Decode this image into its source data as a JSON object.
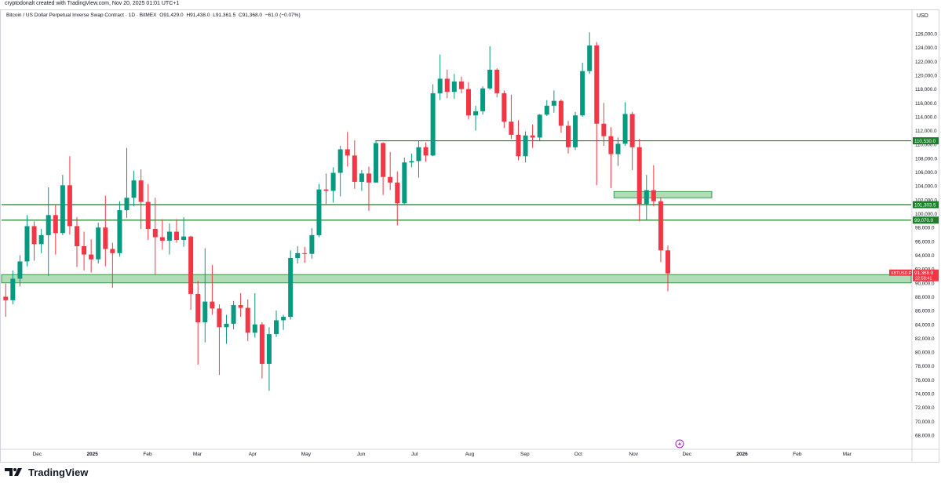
{
  "header": {
    "caption": "cryptodonalt created with TradingView.com, Nov 20, 2025 01:01 UTC+1",
    "symbol_title": "Bitcoin / US Dollar Perpetual Inverse Swap Contract · 1D · BitMEX",
    "open": "O91,429.0",
    "high": "H91,438.0",
    "low": "L91,361.5",
    "close": "C91,368.0",
    "change": "−61.0 (−0.07%)"
  },
  "footer": {
    "brand": "TradingView"
  },
  "chart_data": {
    "type": "candlestick",
    "currency_label": "USD",
    "ylim": [
      67000,
      128000
    ],
    "y_ticks": [
      "68,000.0",
      "70,000.0",
      "72,000.0",
      "74,000.0",
      "76,000.0",
      "78,000.0",
      "80,000.0",
      "82,000.0",
      "84,000.0",
      "86,000.0",
      "88,000.0",
      "90,000.0",
      "92,000.0",
      "94,000.0",
      "96,000.0",
      "98,000.0",
      "100,000.0",
      "102,000.0",
      "104,000.0",
      "106,000.0",
      "108,000.0",
      "110,000.0",
      "112,000.0",
      "114,000.0",
      "116,000.0",
      "118,000.0",
      "120,000.0",
      "122,000.0",
      "124,000.0",
      "126,000.0"
    ],
    "x_ticks": [
      "Dec",
      "2025",
      "Feb",
      "Mar",
      "Apr",
      "May",
      "Jun",
      "Jul",
      "Aug",
      "Sep",
      "Oct",
      "Nov",
      "Dec",
      "2026",
      "Feb",
      "Mar"
    ],
    "x_tick_dates": [
      "2024-12-01",
      "2025-01-01",
      "2025-02-01",
      "2025-03-01",
      "2025-04-01",
      "2025-05-01",
      "2025-06-01",
      "2025-07-01",
      "2025-08-01",
      "2025-09-01",
      "2025-10-01",
      "2025-11-01",
      "2025-12-01",
      "2026-01-01",
      "2026-02-01",
      "2026-03-01"
    ],
    "x_range": [
      "2024-11-11",
      "2026-04-06"
    ],
    "grid": false,
    "horizontal_lines": [
      {
        "price": 110530,
        "label": "110,530.0",
        "start": "2025-06-09"
      },
      {
        "price": 101303.5,
        "label": "101,303.5",
        "start": "2024-11-11"
      },
      {
        "price": 99070,
        "label": "99,070.0",
        "start": "2024-11-11"
      }
    ],
    "zones": [
      {
        "low": 90000,
        "high": 91200,
        "start": "2024-11-11",
        "end": "2026-04-06"
      },
      {
        "low": 102300,
        "high": 103200,
        "start": "2025-10-21",
        "end": "2025-12-15"
      }
    ],
    "last_price": {
      "symbol": "XBTUSD.P",
      "price": "91,368.0",
      "countdown": "22:58:41",
      "value": 91368
    },
    "colors": {
      "up": "#089981",
      "down": "#f23645",
      "line": "#1b7f2a",
      "zone": "#8fcf9a",
      "last": "#f23645",
      "axis_text": "#131722"
    },
    "candles": [
      {
        "d": "2024-11-12",
        "o": 88000,
        "h": 89900,
        "l": 85100,
        "c": 87500
      },
      {
        "d": "2024-11-16",
        "o": 87500,
        "h": 91800,
        "l": 86900,
        "c": 90600
      },
      {
        "d": "2024-11-20",
        "o": 90600,
        "h": 94000,
        "l": 89500,
        "c": 93100
      },
      {
        "d": "2024-11-24",
        "o": 93100,
        "h": 99800,
        "l": 92400,
        "c": 98200
      },
      {
        "d": "2024-11-28",
        "o": 98200,
        "h": 98900,
        "l": 93200,
        "c": 95600
      },
      {
        "d": "2024-12-02",
        "o": 95600,
        "h": 97800,
        "l": 94300,
        "c": 96900
      },
      {
        "d": "2024-12-06",
        "o": 96900,
        "h": 103800,
        "l": 91000,
        "c": 99800
      },
      {
        "d": "2024-12-10",
        "o": 99800,
        "h": 101200,
        "l": 94100,
        "c": 97200
      },
      {
        "d": "2024-12-14",
        "o": 97200,
        "h": 105600,
        "l": 96900,
        "c": 104100
      },
      {
        "d": "2024-12-18",
        "o": 104100,
        "h": 108300,
        "l": 97000,
        "c": 98200
      },
      {
        "d": "2024-12-22",
        "o": 98200,
        "h": 99500,
        "l": 92300,
        "c": 95300
      },
      {
        "d": "2024-12-26",
        "o": 95300,
        "h": 97400,
        "l": 91800,
        "c": 94100
      },
      {
        "d": "2024-12-30",
        "o": 94100,
        "h": 96300,
        "l": 91500,
        "c": 93400
      },
      {
        "d": "2025-01-03",
        "o": 93400,
        "h": 98700,
        "l": 92800,
        "c": 98000
      },
      {
        "d": "2025-01-07",
        "o": 98000,
        "h": 102600,
        "l": 92400,
        "c": 94900
      },
      {
        "d": "2025-01-11",
        "o": 94900,
        "h": 95800,
        "l": 89300,
        "c": 94300
      },
      {
        "d": "2025-01-15",
        "o": 94300,
        "h": 101800,
        "l": 93800,
        "c": 100500
      },
      {
        "d": "2025-01-19",
        "o": 100500,
        "h": 109500,
        "l": 99400,
        "c": 102300
      },
      {
        "d": "2025-01-23",
        "o": 102300,
        "h": 106200,
        "l": 101100,
        "c": 104800
      },
      {
        "d": "2025-01-27",
        "o": 104800,
        "h": 106400,
        "l": 97800,
        "c": 101700
      },
      {
        "d": "2025-01-31",
        "o": 101700,
        "h": 104300,
        "l": 96200,
        "c": 97800
      },
      {
        "d": "2025-02-04",
        "o": 97800,
        "h": 102300,
        "l": 91200,
        "c": 96600
      },
      {
        "d": "2025-02-08",
        "o": 96600,
        "h": 99200,
        "l": 94800,
        "c": 96100
      },
      {
        "d": "2025-02-12",
        "o": 96100,
        "h": 98600,
        "l": 94100,
        "c": 97400
      },
      {
        "d": "2025-02-16",
        "o": 97400,
        "h": 99200,
        "l": 95800,
        "c": 96200
      },
      {
        "d": "2025-02-20",
        "o": 96200,
        "h": 99500,
        "l": 95200,
        "c": 96700
      },
      {
        "d": "2025-02-24",
        "o": 96700,
        "h": 96800,
        "l": 86100,
        "c": 88400
      },
      {
        "d": "2025-02-28",
        "o": 88400,
        "h": 90300,
        "l": 78200,
        "c": 84300
      },
      {
        "d": "2025-03-04",
        "o": 84300,
        "h": 95000,
        "l": 81400,
        "c": 87300
      },
      {
        "d": "2025-03-08",
        "o": 87300,
        "h": 92600,
        "l": 85400,
        "c": 86300
      },
      {
        "d": "2025-03-12",
        "o": 86300,
        "h": 86900,
        "l": 76700,
        "c": 83600
      },
      {
        "d": "2025-03-16",
        "o": 83600,
        "h": 85400,
        "l": 81200,
        "c": 84100
      },
      {
        "d": "2025-03-20",
        "o": 84100,
        "h": 87400,
        "l": 83300,
        "c": 86800
      },
      {
        "d": "2025-03-24",
        "o": 86800,
        "h": 88500,
        "l": 85100,
        "c": 86400
      },
      {
        "d": "2025-03-28",
        "o": 86400,
        "h": 87600,
        "l": 81600,
        "c": 82800
      },
      {
        "d": "2025-04-01",
        "o": 82800,
        "h": 88500,
        "l": 82100,
        "c": 84000
      },
      {
        "d": "2025-04-05",
        "o": 84000,
        "h": 84300,
        "l": 76200,
        "c": 78300
      },
      {
        "d": "2025-04-09",
        "o": 78300,
        "h": 83600,
        "l": 74400,
        "c": 82600
      },
      {
        "d": "2025-04-13",
        "o": 82600,
        "h": 86000,
        "l": 82200,
        "c": 84600
      },
      {
        "d": "2025-04-17",
        "o": 84600,
        "h": 85400,
        "l": 83200,
        "c": 85100
      },
      {
        "d": "2025-04-21",
        "o": 85100,
        "h": 94700,
        "l": 84700,
        "c": 93600
      },
      {
        "d": "2025-04-25",
        "o": 93600,
        "h": 95300,
        "l": 92800,
        "c": 94300
      },
      {
        "d": "2025-04-29",
        "o": 94300,
        "h": 95200,
        "l": 92900,
        "c": 94200
      },
      {
        "d": "2025-05-03",
        "o": 94200,
        "h": 97900,
        "l": 93500,
        "c": 96900
      },
      {
        "d": "2025-05-07",
        "o": 96900,
        "h": 104300,
        "l": 96600,
        "c": 103500
      },
      {
        "d": "2025-05-11",
        "o": 103500,
        "h": 105800,
        "l": 101400,
        "c": 103300
      },
      {
        "d": "2025-05-15",
        "o": 103300,
        "h": 106700,
        "l": 101600,
        "c": 105900
      },
      {
        "d": "2025-05-19",
        "o": 105900,
        "h": 109800,
        "l": 102500,
        "c": 109300
      },
      {
        "d": "2025-05-23",
        "o": 109300,
        "h": 111800,
        "l": 106800,
        "c": 108400
      },
      {
        "d": "2025-05-27",
        "o": 108400,
        "h": 110600,
        "l": 103600,
        "c": 104600
      },
      {
        "d": "2025-05-31",
        "o": 104600,
        "h": 106300,
        "l": 103300,
        "c": 105800
      },
      {
        "d": "2025-06-04",
        "o": 105800,
        "h": 106800,
        "l": 100400,
        "c": 104500
      },
      {
        "d": "2025-06-08",
        "o": 104500,
        "h": 110500,
        "l": 104800,
        "c": 110200
      },
      {
        "d": "2025-06-12",
        "o": 110200,
        "h": 110300,
        "l": 102700,
        "c": 105300
      },
      {
        "d": "2025-06-16",
        "o": 105300,
        "h": 108900,
        "l": 103400,
        "c": 104500
      },
      {
        "d": "2025-06-20",
        "o": 104500,
        "h": 106100,
        "l": 98300,
        "c": 101500
      },
      {
        "d": "2025-06-24",
        "o": 101500,
        "h": 108100,
        "l": 101300,
        "c": 107400
      },
      {
        "d": "2025-06-28",
        "o": 107400,
        "h": 108700,
        "l": 106700,
        "c": 107600
      },
      {
        "d": "2025-07-02",
        "o": 107600,
        "h": 110500,
        "l": 105200,
        "c": 109600
      },
      {
        "d": "2025-07-06",
        "o": 109600,
        "h": 110300,
        "l": 107500,
        "c": 108400
      },
      {
        "d": "2025-07-10",
        "o": 108400,
        "h": 118700,
        "l": 108300,
        "c": 117400
      },
      {
        "d": "2025-07-14",
        "o": 117400,
        "h": 123000,
        "l": 116400,
        "c": 119500
      },
      {
        "d": "2025-07-18",
        "o": 119500,
        "h": 120800,
        "l": 116700,
        "c": 117600
      },
      {
        "d": "2025-07-22",
        "o": 117600,
        "h": 120200,
        "l": 116600,
        "c": 119100
      },
      {
        "d": "2025-07-26",
        "o": 119100,
        "h": 119800,
        "l": 117400,
        "c": 118000
      },
      {
        "d": "2025-07-30",
        "o": 118000,
        "h": 119000,
        "l": 113600,
        "c": 114200
      },
      {
        "d": "2025-08-03",
        "o": 114200,
        "h": 115600,
        "l": 112000,
        "c": 114800
      },
      {
        "d": "2025-08-07",
        "o": 114800,
        "h": 118400,
        "l": 114300,
        "c": 118100
      },
      {
        "d": "2025-08-11",
        "o": 118100,
        "h": 124200,
        "l": 117900,
        "c": 120800
      },
      {
        "d": "2025-08-15",
        "o": 120800,
        "h": 121000,
        "l": 116800,
        "c": 117400
      },
      {
        "d": "2025-08-19",
        "o": 117400,
        "h": 117800,
        "l": 112400,
        "c": 113300
      },
      {
        "d": "2025-08-23",
        "o": 113300,
        "h": 117200,
        "l": 110800,
        "c": 111400
      },
      {
        "d": "2025-08-27",
        "o": 111400,
        "h": 113500,
        "l": 107700,
        "c": 108300
      },
      {
        "d": "2025-08-31",
        "o": 108300,
        "h": 111900,
        "l": 107400,
        "c": 111300
      },
      {
        "d": "2025-09-04",
        "o": 111300,
        "h": 112900,
        "l": 109500,
        "c": 111000
      },
      {
        "d": "2025-09-08",
        "o": 111000,
        "h": 114400,
        "l": 110600,
        "c": 114300
      },
      {
        "d": "2025-09-12",
        "o": 114300,
        "h": 116400,
        "l": 114100,
        "c": 115600
      },
      {
        "d": "2025-09-16",
        "o": 115600,
        "h": 117800,
        "l": 114600,
        "c": 116300
      },
      {
        "d": "2025-09-20",
        "o": 116300,
        "h": 116500,
        "l": 111700,
        "c": 112700
      },
      {
        "d": "2025-09-24",
        "o": 112700,
        "h": 113400,
        "l": 108700,
        "c": 109600
      },
      {
        "d": "2025-09-28",
        "o": 109600,
        "h": 114700,
        "l": 109200,
        "c": 114200
      },
      {
        "d": "2025-10-02",
        "o": 114200,
        "h": 121800,
        "l": 114000,
        "c": 120600
      },
      {
        "d": "2025-10-06",
        "o": 120600,
        "h": 126200,
        "l": 120200,
        "c": 124300
      },
      {
        "d": "2025-10-10",
        "o": 124300,
        "h": 124800,
        "l": 104100,
        "c": 113000
      },
      {
        "d": "2025-10-14",
        "o": 113000,
        "h": 116000,
        "l": 109800,
        "c": 111200
      },
      {
        "d": "2025-10-18",
        "o": 111200,
        "h": 112500,
        "l": 103700,
        "c": 108600
      },
      {
        "d": "2025-10-22",
        "o": 108600,
        "h": 111000,
        "l": 106900,
        "c": 110100
      },
      {
        "d": "2025-10-26",
        "o": 110100,
        "h": 116100,
        "l": 109800,
        "c": 114400
      },
      {
        "d": "2025-10-30",
        "o": 114400,
        "h": 114700,
        "l": 106300,
        "c": 109600
      },
      {
        "d": "2025-11-03",
        "o": 109600,
        "h": 110800,
        "l": 98900,
        "c": 101400
      },
      {
        "d": "2025-11-07",
        "o": 101400,
        "h": 105600,
        "l": 99100,
        "c": 103400
      },
      {
        "d": "2025-11-11",
        "o": 103400,
        "h": 107000,
        "l": 101100,
        "c": 101800
      },
      {
        "d": "2025-11-15",
        "o": 101800,
        "h": 102300,
        "l": 93000,
        "c": 94700
      },
      {
        "d": "2025-11-19",
        "o": 94700,
        "h": 95400,
        "l": 88800,
        "c": 91368
      }
    ]
  }
}
